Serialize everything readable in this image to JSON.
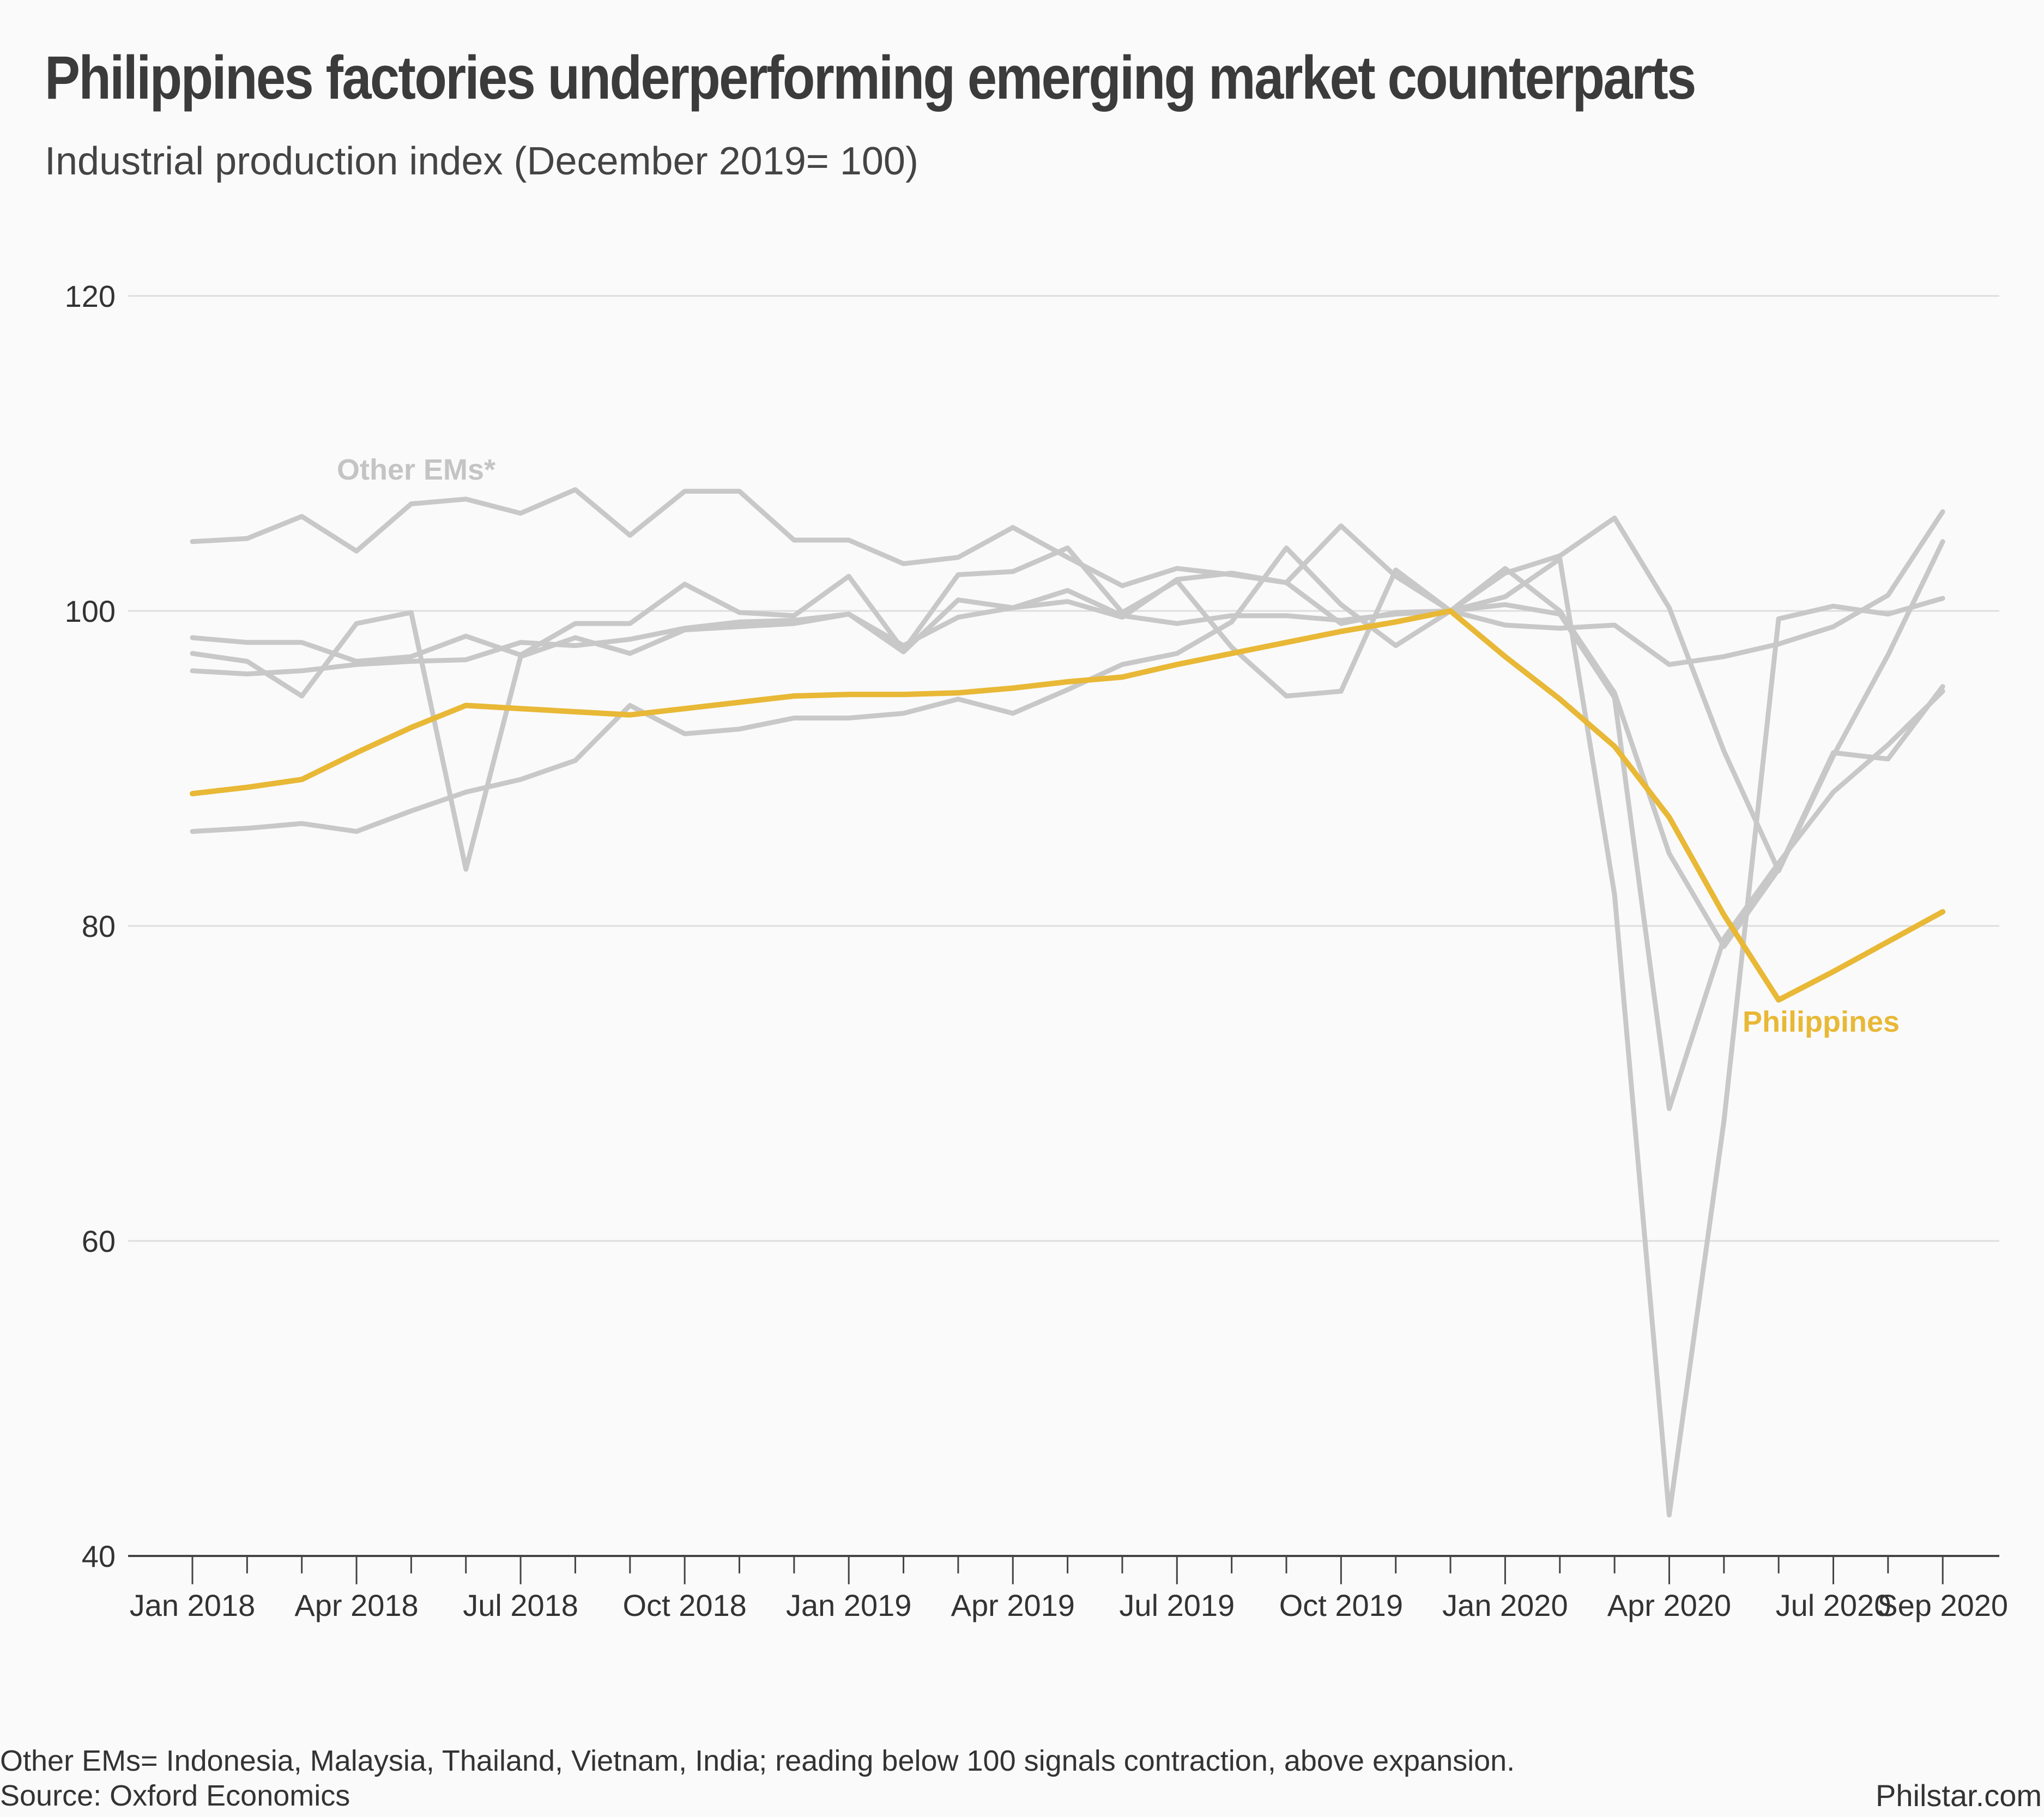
{
  "title": "Philippines factories underperforming emerging market counterparts",
  "subtitle": "Industrial production index (December 2019= 100)",
  "footer": {
    "note": "Other EMs= Indonesia, Malaysia, Thailand, Vietnam, India; reading below 100 signals contraction, above expansion.",
    "source": "Source: Oxford Economics",
    "brand": "Philstar.com"
  },
  "colors": {
    "philippines": "#e8b836",
    "others": "#c8c8c8",
    "grid": "#dddddd",
    "axis": "#444444"
  },
  "chart_data": {
    "type": "line",
    "ylim": [
      40,
      120
    ],
    "yticks": [
      40,
      60,
      80,
      100,
      120
    ],
    "grid": true,
    "x": [
      "Jan 2018",
      "Feb 2018",
      "Mar 2018",
      "Apr 2018",
      "May 2018",
      "Jun 2018",
      "Jul 2018",
      "Aug 2018",
      "Sep 2018",
      "Oct 2018",
      "Nov 2018",
      "Dec 2018",
      "Jan 2019",
      "Feb 2019",
      "Mar 2019",
      "Apr 2019",
      "May 2019",
      "Jun 2019",
      "Jul 2019",
      "Aug 2019",
      "Sep 2019",
      "Oct 2019",
      "Nov 2019",
      "Dec 2019",
      "Jan 2020",
      "Feb 2020",
      "Mar 2020",
      "Apr 2020",
      "May 2020",
      "Jun 2020",
      "Jul 2020",
      "Aug 2020",
      "Sep 2020"
    ],
    "xtick_labels": [
      "Jan 2018",
      "Apr 2018",
      "Jul 2018",
      "Oct 2018",
      "Jan 2019",
      "Apr 2019",
      "Jul 2019",
      "Oct 2019",
      "Jan 2020",
      "Apr 2020",
      "Jul 2020",
      "Sep 2020"
    ],
    "annotations": [
      {
        "text": "Other EMs*",
        "series": "others"
      },
      {
        "text": "Philippines",
        "series": "philippines"
      }
    ],
    "series": [
      {
        "name": "Philippines",
        "highlight": true,
        "values": [
          88.4,
          88.8,
          89.3,
          91.0,
          92.6,
          94.0,
          93.8,
          93.6,
          93.4,
          93.8,
          94.2,
          94.6,
          94.7,
          94.7,
          94.8,
          95.1,
          95.5,
          95.8,
          96.6,
          97.3,
          98.0,
          98.7,
          99.3,
          100.0,
          97.1,
          94.4,
          91.4,
          86.9,
          80.7,
          75.3,
          77.1,
          79.0,
          80.9
        ]
      },
      {
        "values": [
          104.4,
          104.6,
          106.0,
          103.8,
          106.8,
          107.1,
          106.2,
          107.7,
          104.8,
          107.6,
          107.6,
          104.5,
          104.5,
          103.0,
          103.4,
          105.3,
          103.4,
          101.6,
          102.7,
          102.3,
          101.8,
          105.4,
          102.2,
          100.0,
          99.1,
          98.9,
          99.1,
          96.6,
          97.1,
          97.9,
          99.0,
          101.0,
          106.3
        ]
      },
      {
        "values": [
          97.3,
          96.8,
          94.6,
          99.2,
          99.9,
          83.6,
          97.1,
          98.3,
          97.3,
          98.8,
          99.0,
          99.2,
          99.8,
          97.4,
          100.7,
          100.2,
          100.6,
          99.6,
          102.0,
          102.4,
          101.8,
          99.2,
          99.9,
          100.0,
          100.9,
          103.3,
          82.0,
          42.6,
          67.6,
          99.5,
          100.3,
          99.8,
          100.8
        ]
      },
      {
        "values": [
          96.2,
          96.0,
          96.2,
          96.6,
          96.8,
          96.9,
          98.0,
          97.8,
          98.2,
          98.9,
          99.3,
          99.4,
          99.8,
          97.8,
          99.6,
          100.2,
          101.3,
          99.7,
          99.2,
          99.7,
          99.7,
          99.4,
          99.8,
          100.0,
          102.7,
          100.0,
          94.8,
          84.6,
          78.7,
          83.6,
          91.0,
          90.6,
          95.2
        ]
      },
      {
        "values": [
          98.3,
          98.0,
          98.0,
          96.8,
          97.1,
          98.4,
          97.2,
          99.2,
          99.2,
          101.7,
          99.9,
          99.7,
          102.2,
          97.5,
          102.3,
          102.5,
          104.0,
          99.9,
          101.9,
          97.7,
          94.6,
          94.9,
          102.6,
          100.0,
          102.4,
          103.5,
          105.9,
          100.2,
          91.1,
          83.5,
          90.8,
          97.2,
          104.4
        ]
      },
      {
        "values": [
          86.0,
          86.2,
          86.5,
          86.0,
          87.3,
          88.5,
          89.3,
          90.5,
          94.0,
          92.2,
          92.5,
          93.2,
          93.2,
          93.5,
          94.4,
          93.5,
          95.0,
          96.6,
          97.3,
          99.3,
          104.0,
          100.4,
          97.8,
          100.0,
          100.4,
          99.8,
          94.5,
          68.4,
          79.2,
          84.0,
          88.5,
          91.5,
          94.9
        ]
      }
    ]
  }
}
